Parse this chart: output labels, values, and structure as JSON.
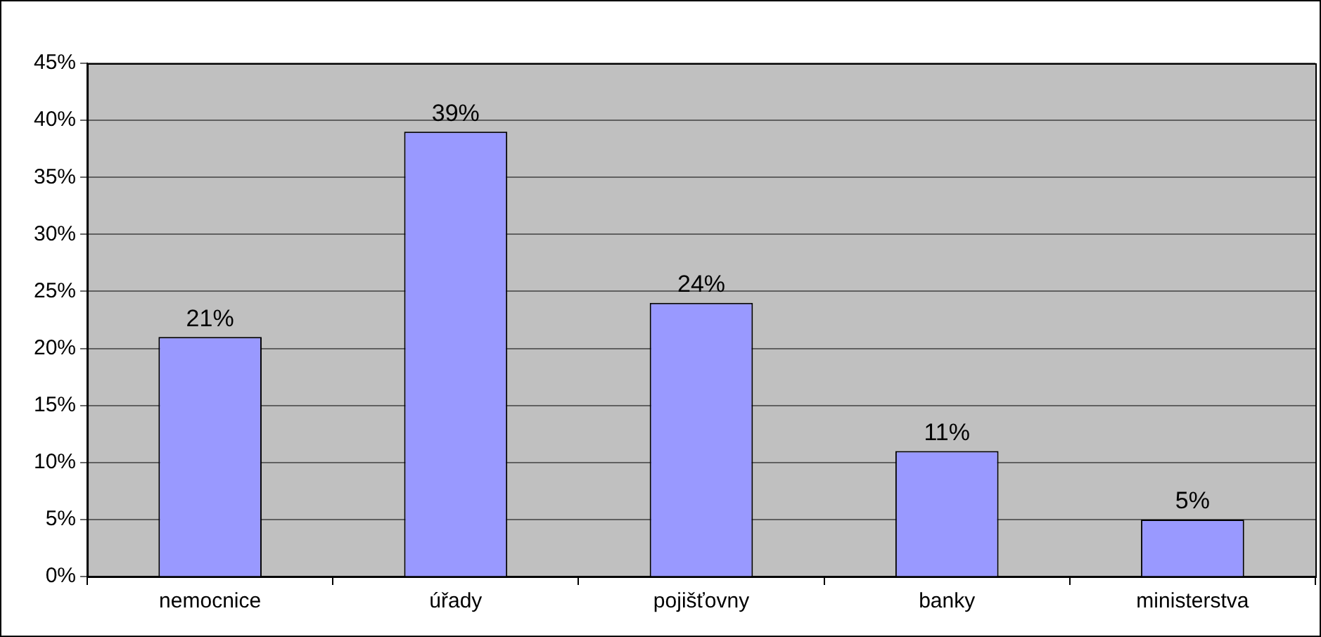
{
  "chart_data": {
    "type": "bar",
    "categories": [
      "nemocnice",
      "úřady",
      "pojišťovny",
      "banky",
      "ministerstva"
    ],
    "values": [
      21,
      39,
      24,
      11,
      5
    ],
    "value_labels": [
      "21%",
      "39%",
      "24%",
      "11%",
      "5%"
    ],
    "color": "#9999ff",
    "ylim": [
      0,
      45
    ],
    "yticks": [
      {
        "value": 0,
        "label": "0%"
      },
      {
        "value": 5,
        "label": "5%"
      },
      {
        "value": 10,
        "label": "10%"
      },
      {
        "value": 15,
        "label": "15%"
      },
      {
        "value": 20,
        "label": "20%"
      },
      {
        "value": 25,
        "label": "25%"
      },
      {
        "value": 30,
        "label": "30%"
      },
      {
        "value": 35,
        "label": "35%"
      },
      {
        "value": 40,
        "label": "40%"
      },
      {
        "value": 45,
        "label": "45%"
      }
    ],
    "grid": "y",
    "legend": false
  }
}
